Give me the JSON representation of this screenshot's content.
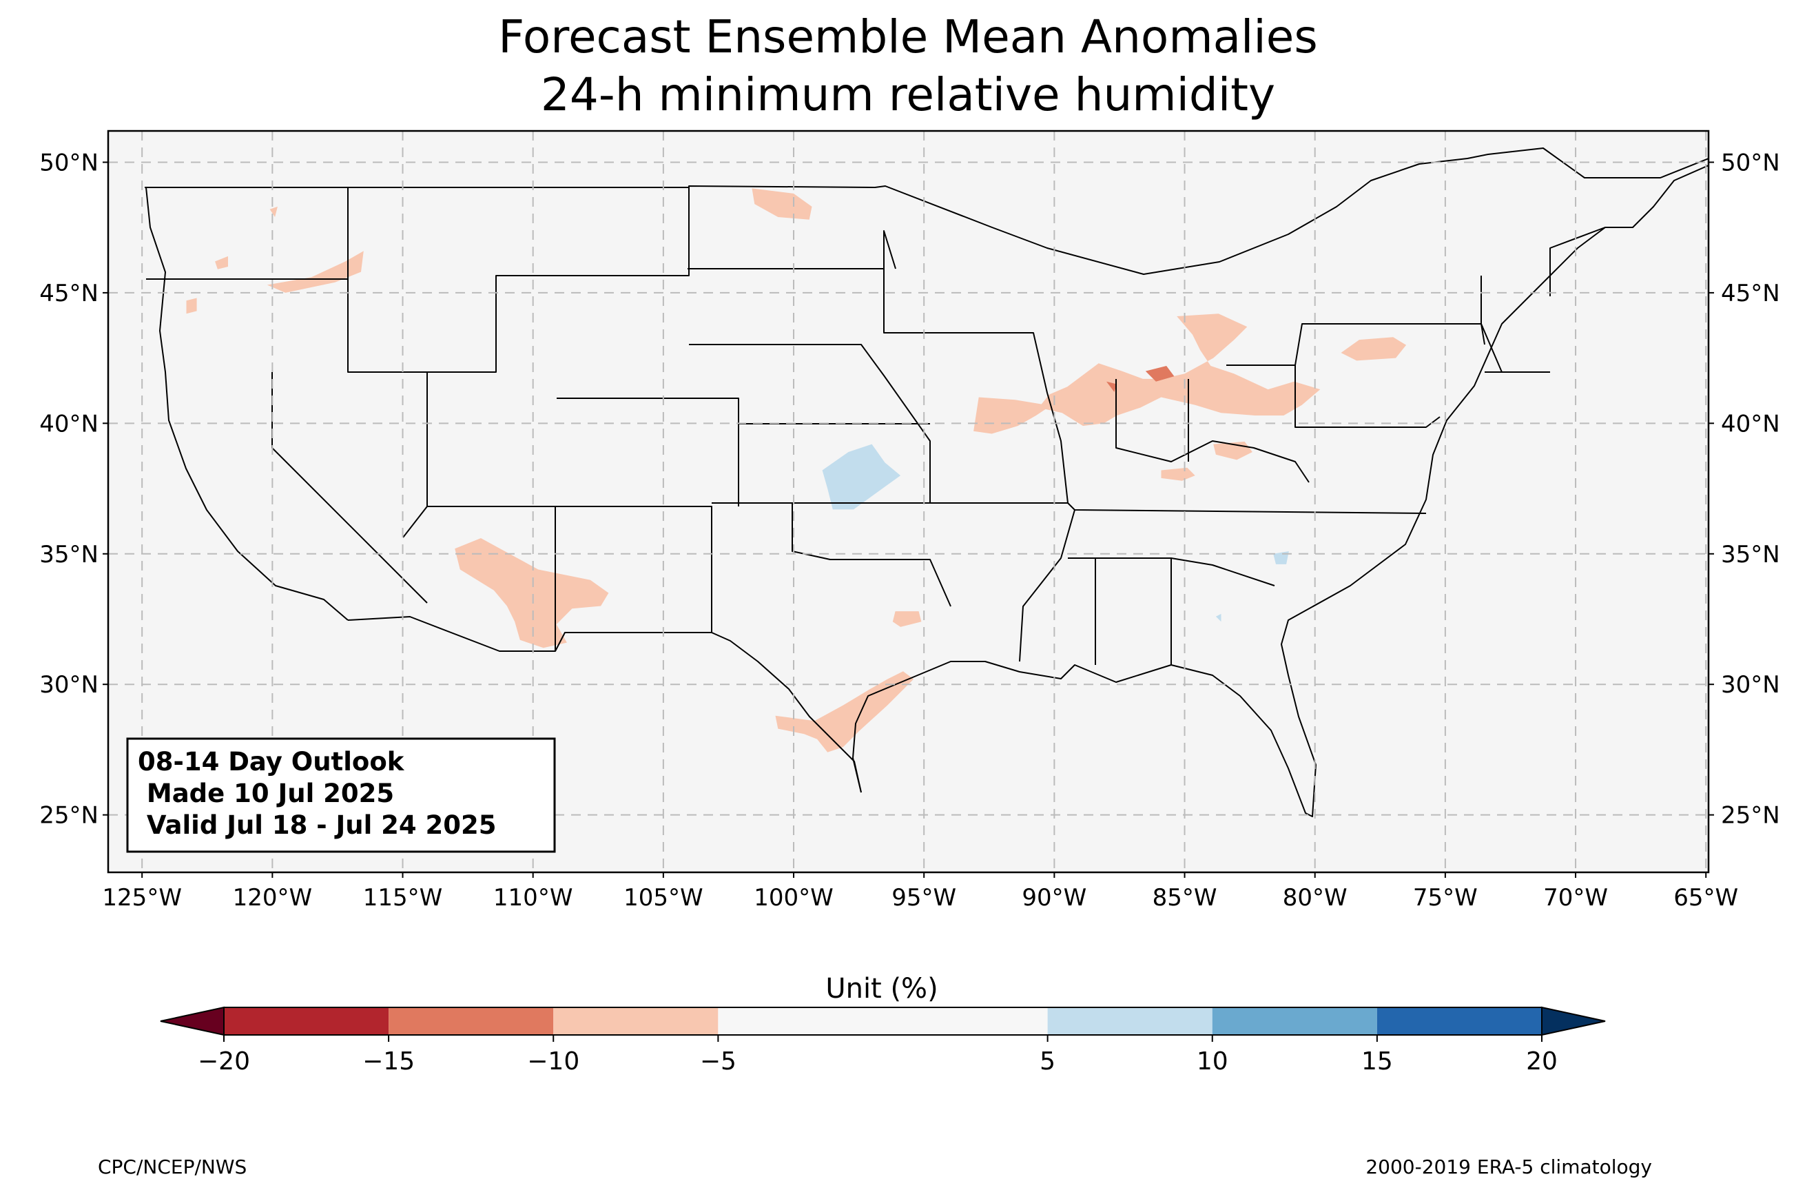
{
  "title": {
    "line1": "Forecast Ensemble Mean Anomalies",
    "line2": "24-h minimum relative humidity"
  },
  "map": {
    "lon_range": [
      -126.3,
      -64.9
    ],
    "lat_range": [
      22.8,
      51.2
    ],
    "lat_ticks": [
      {
        "value": 50,
        "label": "50°N"
      },
      {
        "value": 45,
        "label": "45°N"
      },
      {
        "value": 40,
        "label": "40°N"
      },
      {
        "value": 35,
        "label": "35°N"
      },
      {
        "value": 30,
        "label": "30°N"
      },
      {
        "value": 25,
        "label": "25°N"
      }
    ],
    "lon_ticks": [
      {
        "value": -125,
        "label": "125°W"
      },
      {
        "value": -120,
        "label": "120°W"
      },
      {
        "value": -115,
        "label": "115°W"
      },
      {
        "value": -110,
        "label": "110°W"
      },
      {
        "value": -105,
        "label": "105°W"
      },
      {
        "value": -100,
        "label": "100°W"
      },
      {
        "value": -95,
        "label": "95°W"
      },
      {
        "value": -90,
        "label": "90°W"
      },
      {
        "value": -85,
        "label": "85°W"
      },
      {
        "value": -80,
        "label": "80°W"
      },
      {
        "value": -75,
        "label": "75°W"
      },
      {
        "value": -70,
        "label": "70°W"
      },
      {
        "value": -65,
        "label": "65°W"
      }
    ],
    "gridlines": "dashed",
    "land_color": "#f5f5f5",
    "anomaly_regions": [
      {
        "name": "oregon-idaho",
        "level": -7.5,
        "color": "#f8c7b0",
        "points": [
          [
            -120.2,
            45.3
          ],
          [
            -118.5,
            45.6
          ],
          [
            -117.2,
            46.2
          ],
          [
            -116.5,
            46.6
          ],
          [
            -116.6,
            45.8
          ],
          [
            -117.6,
            45.4
          ],
          [
            -119.5,
            45.0
          ]
        ]
      },
      {
        "name": "oregon-north-dot",
        "level": -7.5,
        "color": "#f8c7b0",
        "points": [
          [
            -122.2,
            46.2
          ],
          [
            -121.7,
            46.4
          ],
          [
            -121.7,
            46.0
          ],
          [
            -122.1,
            45.9
          ]
        ]
      },
      {
        "name": "oregon-south-dot",
        "level": -7.5,
        "color": "#f8c7b0",
        "points": [
          [
            -123.3,
            44.7
          ],
          [
            -122.9,
            44.8
          ],
          [
            -122.9,
            44.3
          ],
          [
            -123.3,
            44.2
          ]
        ]
      },
      {
        "name": "washington-dot",
        "level": -7.5,
        "color": "#f8c7b0",
        "points": [
          [
            -120.1,
            48.2
          ],
          [
            -119.8,
            48.3
          ],
          [
            -119.9,
            47.9
          ]
        ]
      },
      {
        "name": "north-dakota",
        "level": -7.5,
        "color": "#f8c7b0",
        "points": [
          [
            -101.6,
            49.0
          ],
          [
            -100.0,
            48.8
          ],
          [
            -99.3,
            48.3
          ],
          [
            -99.4,
            47.8
          ],
          [
            -100.6,
            47.9
          ],
          [
            -101.5,
            48.4
          ]
        ]
      },
      {
        "name": "arizona-new-mexico",
        "level": -7.5,
        "color": "#f8c7b0",
        "points": [
          [
            -113.0,
            35.2
          ],
          [
            -112.0,
            35.6
          ],
          [
            -110.9,
            35.0
          ],
          [
            -109.8,
            34.4
          ],
          [
            -107.8,
            34.0
          ],
          [
            -107.1,
            33.5
          ],
          [
            -107.4,
            33.0
          ],
          [
            -108.5,
            32.9
          ],
          [
            -109.1,
            32.3
          ],
          [
            -108.7,
            31.6
          ],
          [
            -109.6,
            31.4
          ],
          [
            -110.5,
            31.7
          ],
          [
            -110.7,
            32.4
          ],
          [
            -111.0,
            33.0
          ],
          [
            -111.5,
            33.6
          ],
          [
            -112.8,
            34.4
          ]
        ]
      },
      {
        "name": "south-texas",
        "level": -7.5,
        "color": "#f8c7b0",
        "points": [
          [
            -100.7,
            28.8
          ],
          [
            -99.2,
            28.6
          ],
          [
            -98.1,
            29.2
          ],
          [
            -97.1,
            29.8
          ],
          [
            -96.4,
            30.2
          ],
          [
            -95.8,
            30.5
          ],
          [
            -95.4,
            30.2
          ],
          [
            -96.4,
            29.2
          ],
          [
            -97.5,
            28.2
          ],
          [
            -98.1,
            27.6
          ],
          [
            -98.7,
            27.4
          ],
          [
            -99.1,
            27.9
          ],
          [
            -99.6,
            28.1
          ],
          [
            -100.6,
            28.3
          ]
        ]
      },
      {
        "name": "east-texas-dot",
        "level": -7.5,
        "color": "#f8c7b0",
        "points": [
          [
            -96.1,
            32.8
          ],
          [
            -95.2,
            32.8
          ],
          [
            -95.1,
            32.4
          ],
          [
            -95.9,
            32.2
          ],
          [
            -96.2,
            32.4
          ]
        ]
      },
      {
        "name": "kansas-missouri",
        "level": -7.5,
        "color": "#f8c7b0",
        "points": [
          [
            -92.9,
            41.0
          ],
          [
            -91.5,
            40.9
          ],
          [
            -90.3,
            40.7
          ],
          [
            -89.8,
            40.9
          ],
          [
            -90.7,
            40.3
          ],
          [
            -91.4,
            39.9
          ],
          [
            -92.4,
            39.6
          ],
          [
            -93.1,
            39.7
          ]
        ]
      },
      {
        "name": "illinois-indiana",
        "level": -7.5,
        "color": "#f8c7b0",
        "points": [
          [
            -89.5,
            41.4
          ],
          [
            -88.3,
            42.3
          ],
          [
            -87.4,
            42.0
          ],
          [
            -86.6,
            41.7
          ],
          [
            -85.9,
            41.7
          ],
          [
            -85.0,
            41.9
          ],
          [
            -83.9,
            42.5
          ],
          [
            -83.1,
            43.2
          ],
          [
            -82.6,
            43.7
          ],
          [
            -83.7,
            44.2
          ],
          [
            -85.3,
            44.1
          ],
          [
            -84.7,
            43.4
          ],
          [
            -84.4,
            42.8
          ],
          [
            -84.0,
            42.2
          ],
          [
            -83.1,
            41.9
          ],
          [
            -81.8,
            41.3
          ],
          [
            -80.8,
            41.6
          ],
          [
            -79.8,
            41.3
          ],
          [
            -80.5,
            40.7
          ],
          [
            -81.2,
            40.3
          ],
          [
            -82.3,
            40.3
          ],
          [
            -83.6,
            40.4
          ],
          [
            -84.6,
            40.7
          ],
          [
            -85.9,
            41.0
          ],
          [
            -86.7,
            40.6
          ],
          [
            -87.6,
            40.3
          ],
          [
            -88.1,
            40.0
          ],
          [
            -88.9,
            39.9
          ],
          [
            -89.7,
            40.4
          ],
          [
            -90.6,
            40.6
          ],
          [
            -90.2,
            41.1
          ]
        ]
      },
      {
        "name": "kentucky",
        "level": -7.5,
        "color": "#f8c7b0",
        "points": [
          [
            -85.9,
            38.2
          ],
          [
            -84.9,
            38.3
          ],
          [
            -84.6,
            38.0
          ],
          [
            -85.1,
            37.8
          ],
          [
            -85.9,
            37.9
          ]
        ]
      },
      {
        "name": "ohio-valley",
        "level": -7.5,
        "color": "#f8c7b0",
        "points": [
          [
            -83.9,
            39.2
          ],
          [
            -82.7,
            39.3
          ],
          [
            -82.4,
            38.9
          ],
          [
            -83.0,
            38.6
          ],
          [
            -83.8,
            38.8
          ]
        ]
      },
      {
        "name": "new-york",
        "level": -7.5,
        "color": "#f8c7b0",
        "points": [
          [
            -78.3,
            43.2
          ],
          [
            -77.0,
            43.3
          ],
          [
            -76.5,
            43.0
          ],
          [
            -76.9,
            42.5
          ],
          [
            -78.4,
            42.4
          ],
          [
            -79.0,
            42.7
          ]
        ]
      },
      {
        "name": "indiana-core",
        "level": -12.5,
        "color": "#e0795f",
        "points": [
          [
            -86.5,
            42.0
          ],
          [
            -85.7,
            42.2
          ],
          [
            -85.4,
            41.8
          ],
          [
            -86.1,
            41.6
          ]
        ]
      },
      {
        "name": "illinois-core",
        "level": -12.5,
        "color": "#e0795f",
        "points": [
          [
            -88.0,
            41.6
          ],
          [
            -87.6,
            41.5
          ],
          [
            -87.7,
            41.2
          ]
        ]
      },
      {
        "name": "kansas",
        "level": 7.5,
        "color": "#c2dded",
        "points": [
          [
            -98.9,
            38.2
          ],
          [
            -97.9,
            38.9
          ],
          [
            -97.0,
            39.2
          ],
          [
            -96.5,
            38.5
          ],
          [
            -95.9,
            38.0
          ],
          [
            -96.6,
            37.5
          ],
          [
            -97.7,
            36.7
          ],
          [
            -98.5,
            36.7
          ],
          [
            -98.7,
            37.5
          ]
        ]
      },
      {
        "name": "carolina-dot",
        "level": 7.5,
        "color": "#c2dded",
        "points": [
          [
            -81.6,
            35.0
          ],
          [
            -81.0,
            35.1
          ],
          [
            -81.1,
            34.6
          ],
          [
            -81.5,
            34.6
          ]
        ]
      },
      {
        "name": "georgia-dot",
        "level": 7.5,
        "color": "#c2dded",
        "points": [
          [
            -83.8,
            32.6
          ],
          [
            -83.6,
            32.7
          ],
          [
            -83.6,
            32.4
          ]
        ]
      }
    ]
  },
  "outlook_box": {
    "line1": "08-14 Day Outlook",
    "line2": " Made 10 Jul 2025",
    "line3": " Valid Jul 18 - Jul 24 2025"
  },
  "colorbar": {
    "label": "Unit (%)",
    "ticks": [
      "−20",
      "−15",
      "−10",
      "−5",
      "5",
      "10",
      "15",
      "20"
    ],
    "bins": [
      {
        "from": -20,
        "to": -15,
        "color": "#b2252d"
      },
      {
        "from": -15,
        "to": -10,
        "color": "#e0795f"
      },
      {
        "from": -10,
        "to": -5,
        "color": "#f8c7b0"
      },
      {
        "from": -5,
        "to": 5,
        "color": "#f7f7f7"
      },
      {
        "from": 5,
        "to": 10,
        "color": "#c2dded"
      },
      {
        "from": 10,
        "to": 15,
        "color": "#6aa9cf"
      },
      {
        "from": 15,
        "to": 20,
        "color": "#2366ad"
      }
    ],
    "under_color": "#67001f",
    "over_color": "#04305f"
  },
  "footer": {
    "left": "CPC/NCEP/NWS",
    "right": "2000-2019 ERA-5 climatology"
  }
}
